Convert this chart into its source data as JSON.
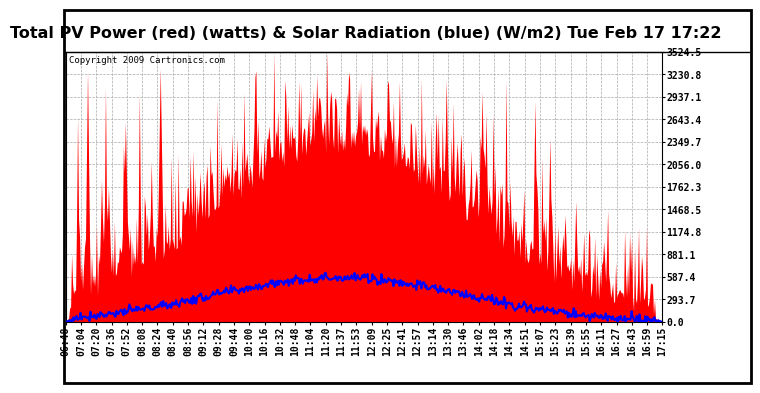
{
  "title": "Total PV Power (red) (watts) & Solar Radiation (blue) (W/m2) Tue Feb 17 17:22",
  "copyright": "Copyright 2009 Cartronics.com",
  "yticks": [
    0.0,
    293.7,
    587.4,
    881.1,
    1174.8,
    1468.5,
    1762.3,
    2056.0,
    2349.7,
    2643.4,
    2937.1,
    3230.8,
    3524.5
  ],
  "ymax": 3524.5,
  "xtick_labels": [
    "06:48",
    "07:04",
    "07:20",
    "07:36",
    "07:52",
    "08:08",
    "08:24",
    "08:40",
    "08:56",
    "09:12",
    "09:28",
    "09:44",
    "10:00",
    "10:16",
    "10:32",
    "10:48",
    "11:04",
    "11:20",
    "11:37",
    "11:53",
    "12:09",
    "12:25",
    "12:41",
    "12:57",
    "13:14",
    "13:30",
    "13:46",
    "14:02",
    "14:18",
    "14:34",
    "14:51",
    "15:07",
    "15:23",
    "15:39",
    "15:55",
    "16:11",
    "16:27",
    "16:43",
    "16:59",
    "17:15"
  ],
  "bg_color": "#ffffff",
  "plot_bg_color": "#ffffff",
  "grid_color": "#aaaaaa",
  "red_fill_color": "#ff0000",
  "blue_line_color": "#0000ff",
  "title_font_size": 11.5,
  "tick_font_size": 7,
  "copyright_font_size": 6.5,
  "solar_rad_peak": 580,
  "solar_rad_noise_std": 30,
  "pv_base_peak": 2200,
  "pv_noise_std": 500
}
